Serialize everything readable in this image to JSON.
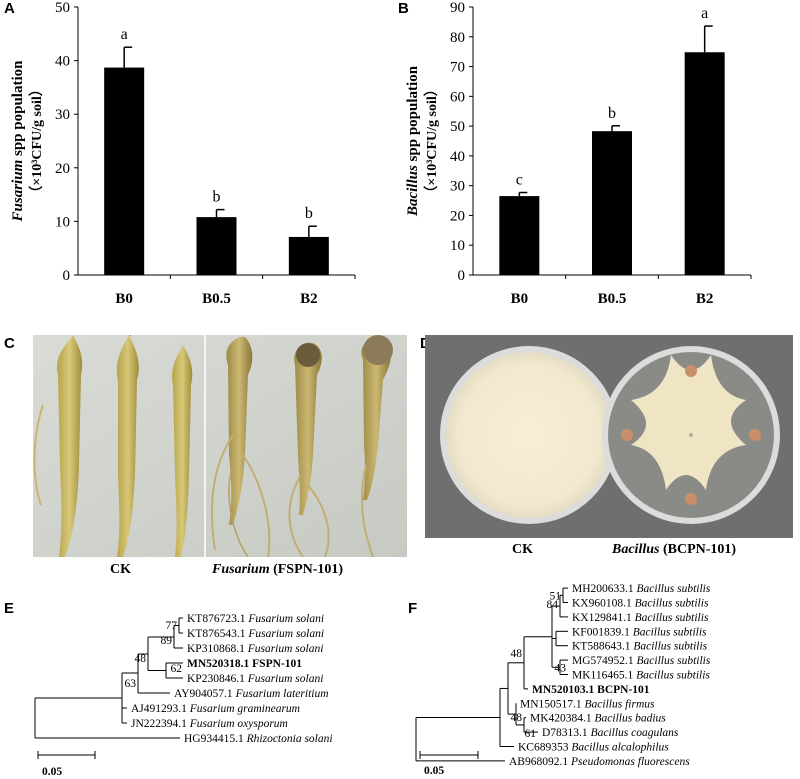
{
  "panels": {
    "A": "A",
    "B": "B",
    "C": "C",
    "D": "D",
    "E": "E",
    "F": "F"
  },
  "chart_data": [
    {
      "type": "bar",
      "panel": "A",
      "categories": [
        "B0",
        "B0.5",
        "B2"
      ],
      "values": [
        38.7,
        10.8,
        7.1
      ],
      "errors": [
        3.8,
        1.4,
        2.0
      ],
      "letters": [
        "a",
        "b",
        "b"
      ],
      "ylabel_italic": "Fusarium",
      "ylabel_rest": " spp population",
      "ylabel_line2": "（×10³CFU/g soil）",
      "ylim": [
        0,
        50
      ],
      "yticks": [
        0,
        10,
        20,
        30,
        40,
        50
      ],
      "bar_color": "#000000"
    },
    {
      "type": "bar",
      "panel": "B",
      "categories": [
        "B0",
        "B0.5",
        "B2"
      ],
      "values": [
        26.5,
        48.3,
        74.8
      ],
      "errors": [
        1.2,
        1.8,
        8.8
      ],
      "letters": [
        "c",
        "b",
        "a"
      ],
      "ylabel_italic": "Bacillus",
      "ylabel_rest": " spp population",
      "ylabel_line2": "（×10³CFU/g soil）",
      "ylim": [
        0,
        90
      ],
      "yticks": [
        0,
        10,
        20,
        30,
        40,
        50,
        60,
        70,
        80,
        90
      ],
      "bar_color": "#000000"
    }
  ],
  "photos": {
    "C": {
      "left_caption": "CK",
      "right_caption_italic": "Fusarium",
      "right_caption_rest": " (FSPN-101)"
    },
    "D": {
      "left_caption": "CK",
      "right_caption_italic": "Bacillus",
      "right_caption_rest": " (BCPN-101)"
    }
  },
  "tree_E": {
    "leaves": [
      {
        "acc": "KT876723.1",
        "species": "Fusarium solani",
        "bold": false
      },
      {
        "acc": "KT876543.1",
        "species": "Fusarium solani",
        "bold": false
      },
      {
        "acc": "KP310868.1",
        "species": "Fusarium solani",
        "bold": false
      },
      {
        "acc": "MN520318.1 FSPN-101",
        "species": "",
        "bold": true
      },
      {
        "acc": "KP230846.1",
        "species": "Fusarium solani",
        "bold": false
      },
      {
        "acc": "AY904057.1",
        "species": "Fusarium lateritium",
        "bold": false
      },
      {
        "acc": "AJ491293.1",
        "species": "Fusarium graminearum",
        "bold": false
      },
      {
        "acc": "JN222394.1",
        "species": "Fusarium oxysporum",
        "bold": false
      },
      {
        "acc": "HG934415.1",
        "species": "Rhizoctonia solani",
        "bold": false
      }
    ],
    "bootstraps": [
      "77",
      "89",
      "62",
      "48",
      "63"
    ],
    "scale": "0.05"
  },
  "tree_F": {
    "leaves": [
      {
        "acc": "MH200633.1",
        "species": "Bacillus subtilis",
        "bold": false
      },
      {
        "acc": "KX960108.1",
        "species": "Bacillus subtilis",
        "bold": false
      },
      {
        "acc": "KX129841.1",
        "species": "Bacillus subtilis",
        "bold": false
      },
      {
        "acc": "KF001839.1",
        "species": "Bacillus subtilis",
        "bold": false
      },
      {
        "acc": "KT588643.1",
        "species": "Bacillus subtilis",
        "bold": false
      },
      {
        "acc": "MG574952.1",
        "species": "Bacillus subtilis",
        "bold": false
      },
      {
        "acc": "MK116465.1",
        "species": "Bacillus subtilis",
        "bold": false
      },
      {
        "acc": "MN520103.1 BCPN-101",
        "species": "",
        "bold": true
      },
      {
        "acc": "MN150517.1",
        "species": "Bacillus firmus",
        "bold": false
      },
      {
        "acc": "MK420384.1",
        "species": "Bacillus badius",
        "bold": false
      },
      {
        "acc": "D78313.1",
        "species": "Bacillus coagulans",
        "bold": false
      },
      {
        "acc": "KC689353",
        "species": "Bacillus alcalophilus",
        "bold": false
      },
      {
        "acc": "AB968092.1",
        "species": "Pseudomonas fluorescens",
        "bold": false
      }
    ],
    "bootstraps": [
      "51",
      "84",
      "43",
      "48",
      "48",
      "61"
    ],
    "scale": "0.05"
  }
}
